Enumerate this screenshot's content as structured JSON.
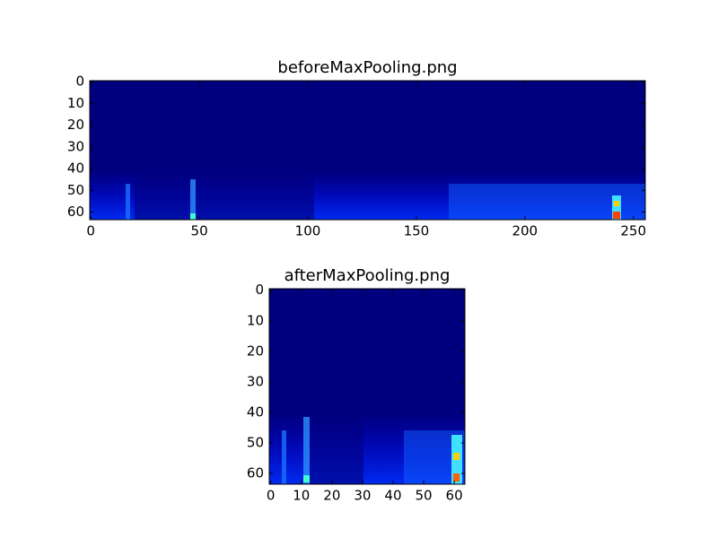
{
  "chart_data": [
    {
      "type": "image",
      "title": "beforeMaxPooling.png",
      "color": "#00007f",
      "xlim": [
        -0.5,
        255.5
      ],
      "ylim": [
        63.5,
        -0.5
      ],
      "xticks": [
        0,
        50,
        100,
        150,
        200,
        250
      ],
      "yticks": [
        0,
        10,
        20,
        30,
        40,
        50,
        60
      ]
    },
    {
      "type": "image",
      "title": "afterMaxPooling.png",
      "color": "#00007f",
      "xlim": [
        -0.5,
        63.5
      ],
      "ylim": [
        63.5,
        -0.5
      ],
      "xticks": [
        0,
        10,
        20,
        30,
        40,
        50,
        60
      ],
      "yticks": [
        0,
        10,
        20,
        30,
        40,
        50,
        60
      ]
    }
  ]
}
